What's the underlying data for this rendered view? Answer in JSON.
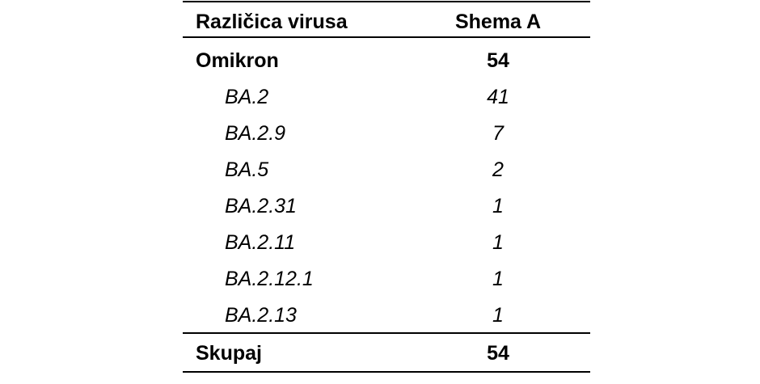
{
  "table": {
    "headers": [
      "Različica virusa",
      "Shema A"
    ],
    "group": {
      "label": "Omikron",
      "value": "54"
    },
    "rows": [
      {
        "label": "BA.2",
        "value": "41"
      },
      {
        "label": "BA.2.9",
        "value": "7"
      },
      {
        "label": "BA.5",
        "value": "2"
      },
      {
        "label": "BA.2.31",
        "value": "1"
      },
      {
        "label": "BA.2.11",
        "value": "1"
      },
      {
        "label": "BA.2.12.1",
        "value": "1"
      },
      {
        "label": "BA.2.13",
        "value": "1"
      }
    ],
    "total": {
      "label": "Skupaj",
      "value": "54"
    }
  }
}
